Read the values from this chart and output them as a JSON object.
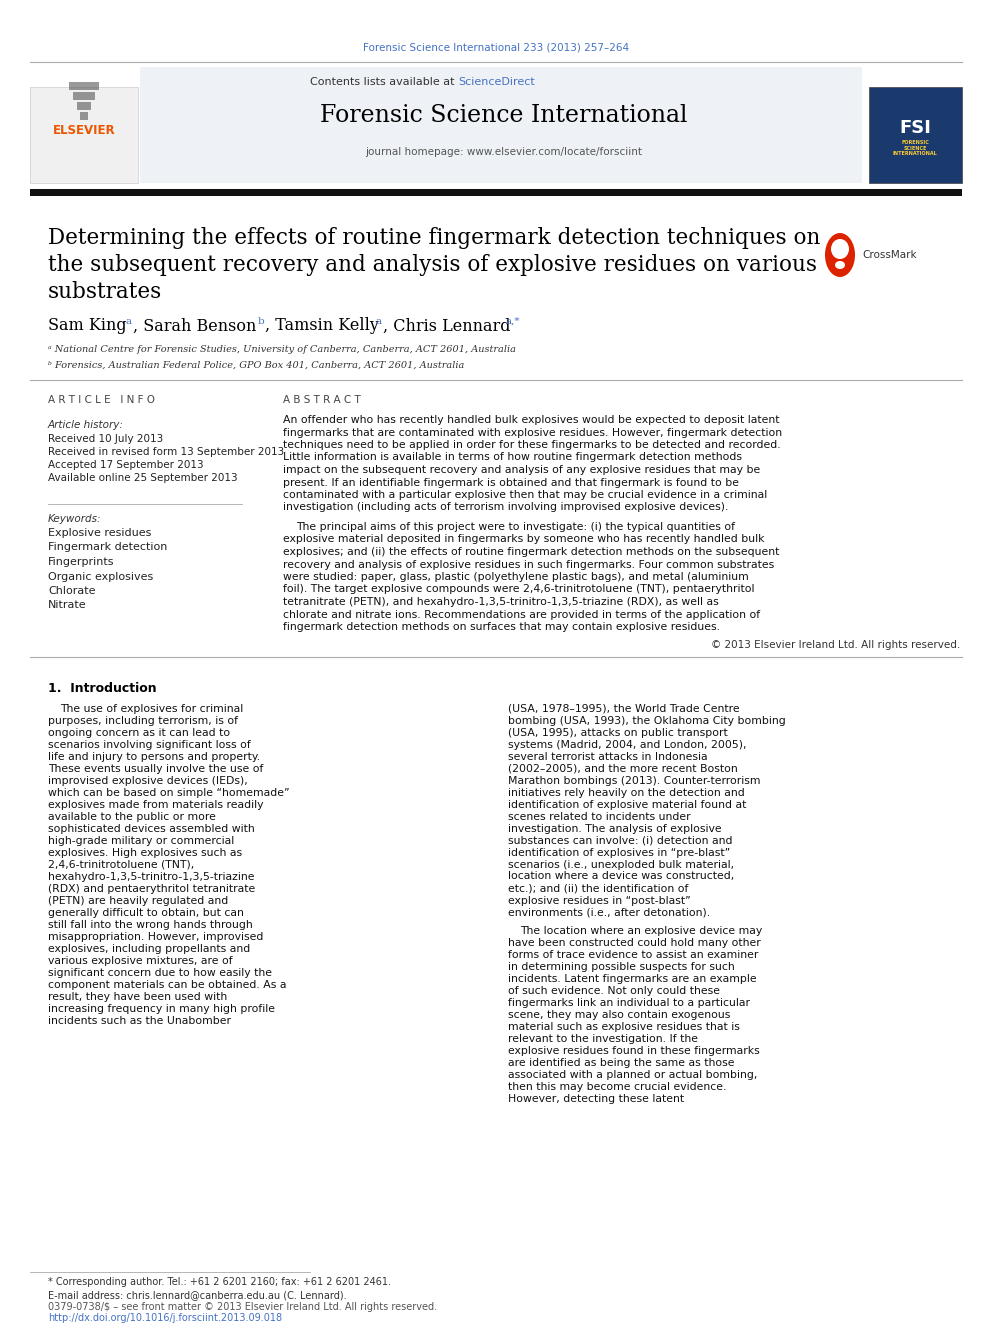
{
  "journal_ref": "Forensic Science International 233 (2013) 257–264",
  "contents_text": "Contents lists available at",
  "sciencedirect_text": "ScienceDirect",
  "journal_name": "Forensic Science International",
  "journal_homepage": "journal homepage: www.elsevier.com/locate/forsciint",
  "title_line1": "Determining the effects of routine fingermark detection techniques on",
  "title_line2": "the subsequent recovery and analysis of explosive residues on various",
  "title_line3": "substrates",
  "affil_a": "ᵃ National Centre for Forensic Studies, University of Canberra, Canberra, ACT 2601, Australia",
  "affil_b": "ᵇ Forensics, Australian Federal Police, GPO Box 401, Canberra, ACT 2601, Australia",
  "article_info_header": "A R T I C L E   I N F O",
  "abstract_header": "A B S T R A C T",
  "article_history_label": "Article history:",
  "received1": "Received 10 July 2013",
  "received2": "Received in revised form 13 September 2013",
  "accepted": "Accepted 17 September 2013",
  "available": "Available online 25 September 2013",
  "keywords_label": "Keywords:",
  "keywords": [
    "Explosive residues",
    "Fingermark detection",
    "Fingerprints",
    "Organic explosives",
    "Chlorate",
    "Nitrate"
  ],
  "abstract_para1": "An offender who has recently handled bulk explosives would be expected to deposit latent fingermarks that are contaminated with explosive residues. However, fingermark detection techniques need to be applied in order for these fingermarks to be detected and recorded. Little information is available in terms of how routine fingermark detection methods impact on the subsequent recovery and analysis of any explosive residues that may be present. If an identifiable fingermark is obtained and that fingermark is found to be contaminated with a particular explosive then that may be crucial evidence in a criminal investigation (including acts of terrorism involving improvised explosive devices).",
  "abstract_para2": "The principal aims of this project were to investigate: (i) the typical quantities of explosive material deposited in fingermarks by someone who has recently handled bulk explosives; and (ii) the effects of routine fingermark detection methods on the subsequent recovery and analysis of explosive residues in such fingermarks. Four common substrates were studied: paper, glass, plastic (polyethylene plastic bags), and metal (aluminium foil). The target explosive compounds were 2,4,6-trinitrotoluene (TNT), pentaerythritol tetranitrate (PETN), and hexahydro-1,3,5-trinitro-1,3,5-triazine (RDX), as well as chlorate and nitrate ions. Recommendations are provided in terms of the application of fingermark detection methods on surfaces that may contain explosive residues.",
  "copyright": "© 2013 Elsevier Ireland Ltd. All rights reserved.",
  "intro_header": "1.  Introduction",
  "intro_para1": "The use of explosives for criminal purposes, including terrorism, is of ongoing concern as it can lead to scenarios involving significant loss of life and injury to persons and property. These events usually involve the use of improvised explosive devices (IEDs), which can be based on simple “homemade” explosives made from materials readily available to the public or more sophisticated devices assembled with high-grade military or commercial explosives. High explosives such as 2,4,6-trinitrotoluene (TNT), hexahydro-1,3,5-trinitro-1,3,5-triazine (RDX) and pentaerythritol tetranitrate (PETN) are heavily regulated and generally difficult to obtain, but can still fall into the wrong hands through misappropriation. However, improvised explosives, including propellants and various explosive mixtures, are of significant concern due to how easily the component materials can be obtained. As a result, they have been used with increasing frequency in many high profile incidents such as the Unabomber",
  "intro_para2_right": "(USA, 1978–1995), the World Trade Centre bombing (USA, 1993), the Oklahoma City bombing (USA, 1995), attacks on public transport systems (Madrid, 2004, and London, 2005), several terrorist attacks in Indonesia (2002–2005), and the more recent Boston Marathon bombings (2013). Counter-terrorism initiatives rely heavily on the detection and identification of explosive material found at scenes related to incidents under investigation. The analysis of explosive substances can involve: (i) detection and identification of explosives in “pre-blast” scenarios (i.e., unexploded bulk material, location where a device was constructed, etc.); and (ii) the identification of explosive residues in “post-blast” environments (i.e., after detonation).",
  "intro_para3_right": "The location where an explosive device may have been constructed could hold many other forms of trace evidence to assist an examiner in determining possible suspects for such incidents. Latent fingermarks are an example of such evidence. Not only could these fingermarks link an individual to a particular scene, they may also contain exogenous material such as explosive residues that is relevant to the investigation. If the explosive residues found in these fingermarks are identified as being the same as those associated with a planned or actual bombing, then this may become crucial evidence. However, detecting these latent",
  "footnote_star": "* Corresponding author. Tel.: +61 2 6201 2160; fax: +61 2 6201 2461.",
  "footnote_email": "E-mail address: chris.lennard@canberra.edu.au (C. Lennard).",
  "footer_issn": "0379-0738/$ – see front matter © 2013 Elsevier Ireland Ltd. All rights reserved.",
  "footer_doi": "http://dx.doi.org/10.1016/j.forsciint.2013.09.018",
  "bg_color": "#ffffff",
  "link_color": "#4472c4",
  "text_color": "#000000"
}
